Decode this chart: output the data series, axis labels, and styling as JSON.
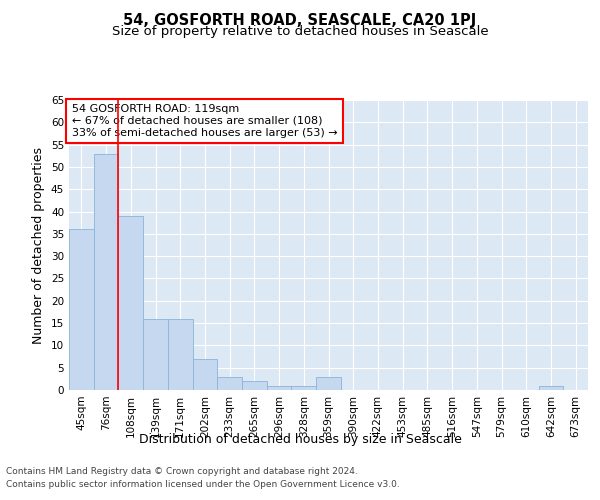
{
  "title": "54, GOSFORTH ROAD, SEASCALE, CA20 1PJ",
  "subtitle": "Size of property relative to detached houses in Seascale",
  "xlabel": "Distribution of detached houses by size in Seascale",
  "ylabel": "Number of detached properties",
  "bar_labels": [
    "45sqm",
    "76sqm",
    "108sqm",
    "139sqm",
    "171sqm",
    "202sqm",
    "233sqm",
    "265sqm",
    "296sqm",
    "328sqm",
    "359sqm",
    "390sqm",
    "422sqm",
    "453sqm",
    "485sqm",
    "516sqm",
    "547sqm",
    "579sqm",
    "610sqm",
    "642sqm",
    "673sqm"
  ],
  "bar_values": [
    36,
    53,
    39,
    16,
    16,
    7,
    3,
    2,
    1,
    1,
    3,
    0,
    0,
    0,
    0,
    0,
    0,
    0,
    0,
    1,
    0
  ],
  "bar_color": "#c5d8f0",
  "bar_edge_color": "#8ab4d8",
  "plot_bg_color": "#dde8f5",
  "fig_bg_color": "#ffffff",
  "grid_color": "#ffffff",
  "ylim": [
    0,
    65
  ],
  "yticks": [
    0,
    5,
    10,
    15,
    20,
    25,
    30,
    35,
    40,
    45,
    50,
    55,
    60,
    65
  ],
  "property_label": "54 GOSFORTH ROAD: 119sqm",
  "annotation_line1": "← 67% of detached houses are smaller (108)",
  "annotation_line2": "33% of semi-detached houses are larger (53) →",
  "red_line_x": 1.5,
  "footer_line1": "Contains HM Land Registry data © Crown copyright and database right 2024.",
  "footer_line2": "Contains public sector information licensed under the Open Government Licence v3.0.",
  "title_fontsize": 10.5,
  "subtitle_fontsize": 9.5,
  "axis_label_fontsize": 9,
  "tick_fontsize": 7.5,
  "annotation_fontsize": 8,
  "footer_fontsize": 6.5
}
